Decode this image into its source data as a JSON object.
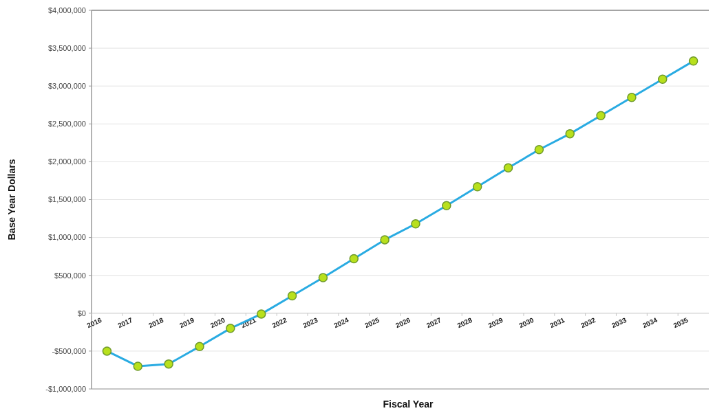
{
  "chart_data": {
    "type": "line",
    "xlabel": "Fiscal Year",
    "ylabel": "Base Year Dollars",
    "categories": [
      "2016",
      "2017",
      "2018",
      "2019",
      "2020",
      "2021",
      "2022",
      "2023",
      "2024",
      "2025",
      "2026",
      "2027",
      "2028",
      "2029",
      "2030",
      "2031",
      "2032",
      "2033",
      "2034",
      "2035"
    ],
    "series": [
      {
        "color": "#29abe2",
        "values": [
          -500000,
          -700000,
          -670000,
          -440000,
          -200000,
          -10000,
          230000,
          470000,
          720000,
          970000,
          1180000,
          1420000,
          1670000,
          1920000,
          2160000,
          2370000,
          2610000,
          2850000,
          3090000,
          3330000
        ]
      }
    ],
    "ylim": [
      -1000000,
      4000000
    ],
    "yticks": [
      {
        "value": -1000000,
        "label": "-$1,000,000"
      },
      {
        "value": -500000,
        "label": "-$500,000"
      },
      {
        "value": 0,
        "label": "$0"
      },
      {
        "value": 500000,
        "label": "$500,000"
      },
      {
        "value": 1000000,
        "label": "$1,000,000"
      },
      {
        "value": 1500000,
        "label": "$1,500,000"
      },
      {
        "value": 2000000,
        "label": "$2,000,000"
      },
      {
        "value": 2500000,
        "label": "$2,500,000"
      },
      {
        "value": 3000000,
        "label": "$3,000,000"
      },
      {
        "value": 3500000,
        "label": "$3,500,000"
      },
      {
        "value": 4000000,
        "label": "$4,000,000"
      }
    ],
    "grid": "y",
    "marker": "circle",
    "line_style": "solid"
  }
}
